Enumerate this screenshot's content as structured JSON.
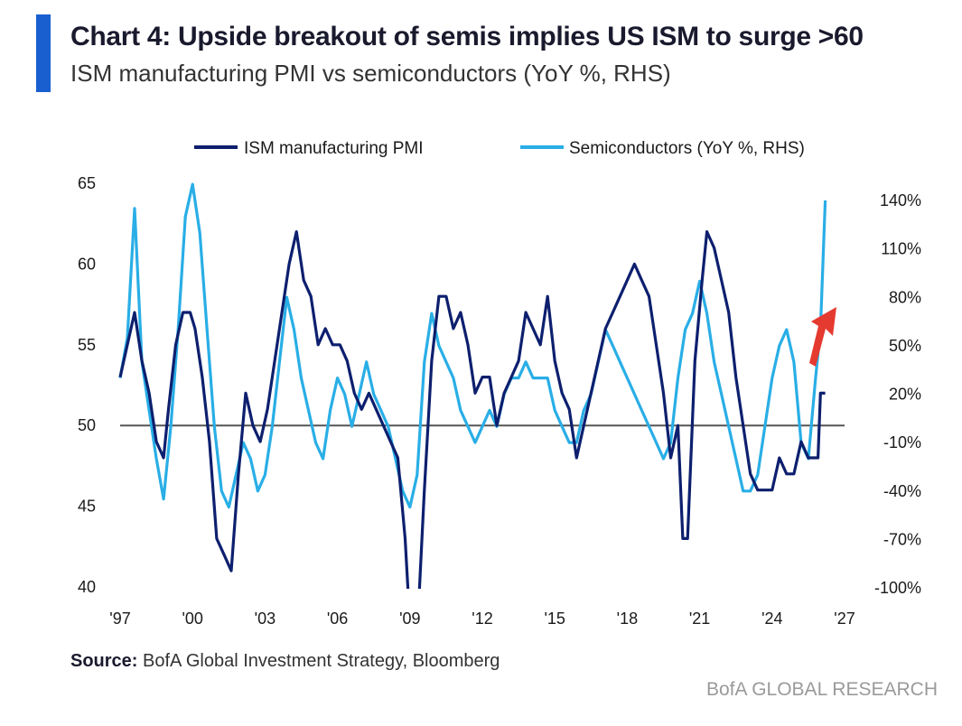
{
  "header": {
    "title": "Chart 4: Upside breakout of semis implies US ISM to surge >60",
    "subtitle": "ISM manufacturing PMI vs semiconductors (YoY %, RHS)"
  },
  "footer": {
    "source_label": "Source:",
    "source_text": "BofA Global Investment Strategy, Bloomberg",
    "brand": "BofA GLOBAL RESEARCH"
  },
  "colors": {
    "accent": "#1a5fd0",
    "ism": "#0d1f6e",
    "semis": "#29aee6",
    "baseline": "#555555",
    "arrow": "#e53a2f"
  },
  "chart_data": {
    "type": "line",
    "title": "",
    "xlabel": "",
    "ylabel": "",
    "x_ticks": [
      "'97",
      "'00",
      "'03",
      "'06",
      "'09",
      "'12",
      "'15",
      "'18",
      "'21",
      "'24",
      "'27"
    ],
    "y_left_ticks": [
      "65",
      "60",
      "55",
      "50",
      "45",
      "40"
    ],
    "y_right_ticks": [
      "140%",
      "110%",
      "80%",
      "50%",
      "20%",
      "-10%",
      "-40%",
      "-70%",
      "-100%"
    ],
    "xlim": [
      1997,
      2027
    ],
    "ylim_left": [
      40,
      65
    ],
    "ylim_right": [
      -100,
      140
    ],
    "reference_line": {
      "axis": "left",
      "value": 50
    },
    "legend": {
      "placement": "top",
      "entries": [
        "ISM manufacturing PMI",
        "Semiconductors (YoY %, RHS)"
      ]
    },
    "annotation": "red upward arrow near latest values",
    "series": [
      {
        "name": "ISM manufacturing PMI",
        "axis": "left",
        "x": [
          1997.0,
          1997.3,
          1997.6,
          1997.9,
          1998.2,
          1998.5,
          1998.8,
          1999.0,
          1999.3,
          1999.6,
          1999.9,
          2000.1,
          2000.4,
          2000.7,
          2001.0,
          2001.3,
          2001.6,
          2001.9,
          2002.2,
          2002.5,
          2002.8,
          2003.1,
          2003.4,
          2003.7,
          2004.0,
          2004.3,
          2004.6,
          2004.9,
          2005.2,
          2005.5,
          2005.8,
          2006.1,
          2006.4,
          2006.7,
          2007.0,
          2007.3,
          2007.6,
          2007.9,
          2008.2,
          2008.5,
          2008.8,
          2008.95,
          2009.1,
          2009.3,
          2009.6,
          2009.9,
          2010.2,
          2010.5,
          2010.8,
          2011.1,
          2011.4,
          2011.7,
          2012.0,
          2012.3,
          2012.6,
          2012.9,
          2013.2,
          2013.5,
          2013.8,
          2014.1,
          2014.4,
          2014.7,
          2015.0,
          2015.3,
          2015.6,
          2015.9,
          2016.2,
          2016.5,
          2016.8,
          2017.1,
          2017.4,
          2017.7,
          2018.0,
          2018.3,
          2018.6,
          2018.9,
          2019.2,
          2019.5,
          2019.8,
          2020.1,
          2020.3,
          2020.5,
          2020.8,
          2021.1,
          2021.3,
          2021.6,
          2021.9,
          2022.2,
          2022.5,
          2022.8,
          2023.1,
          2023.4,
          2023.7,
          2024.0,
          2024.3,
          2024.6,
          2024.9,
          2025.2,
          2025.5,
          2025.8,
          2025.9,
          2026.0,
          2026.2
        ],
        "values": [
          53,
          55,
          57,
          54,
          52,
          49,
          48,
          51,
          55,
          57,
          57,
          56,
          53,
          49,
          43,
          42,
          41,
          47,
          52,
          50,
          49,
          51,
          54,
          57,
          60,
          62,
          59,
          58,
          55,
          56,
          55,
          55,
          54,
          52,
          51,
          52,
          51,
          50,
          49,
          48,
          43,
          39,
          36,
          37,
          46,
          54,
          58,
          58,
          56,
          57,
          55,
          52,
          53,
          53,
          50,
          52,
          53,
          54,
          57,
          56,
          55,
          58,
          54,
          52,
          51,
          48,
          50,
          52,
          54,
          56,
          57,
          58,
          59,
          60,
          59,
          58,
          55,
          52,
          48,
          50,
          43,
          43,
          54,
          59,
          62,
          61,
          59,
          57,
          53,
          50,
          47,
          46,
          46,
          46,
          48,
          47,
          47,
          49,
          48,
          48,
          48,
          52,
          52
        ]
      },
      {
        "name": "Semiconductors (YoY %, RHS)",
        "axis": "right",
        "x": [
          1997.0,
          1997.3,
          1997.6,
          1997.9,
          1998.2,
          1998.5,
          1998.8,
          1999.1,
          1999.4,
          1999.7,
          2000.0,
          2000.3,
          2000.6,
          2000.9,
          2001.2,
          2001.5,
          2001.8,
          2002.1,
          2002.4,
          2002.7,
          2003.0,
          2003.3,
          2003.6,
          2003.9,
          2004.2,
          2004.5,
          2004.8,
          2005.1,
          2005.4,
          2005.7,
          2006.0,
          2006.3,
          2006.6,
          2006.9,
          2007.2,
          2007.5,
          2007.8,
          2008.1,
          2008.4,
          2008.7,
          2009.0,
          2009.3,
          2009.6,
          2009.9,
          2010.2,
          2010.5,
          2010.8,
          2011.1,
          2011.4,
          2011.7,
          2012.0,
          2012.3,
          2012.6,
          2012.9,
          2013.2,
          2013.5,
          2013.8,
          2014.1,
          2014.4,
          2014.7,
          2015.0,
          2015.3,
          2015.6,
          2015.9,
          2016.2,
          2016.5,
          2016.8,
          2017.1,
          2017.4,
          2017.7,
          2018.0,
          2018.3,
          2018.6,
          2018.9,
          2019.2,
          2019.5,
          2019.8,
          2020.1,
          2020.4,
          2020.7,
          2021.0,
          2021.3,
          2021.6,
          2021.9,
          2022.2,
          2022.5,
          2022.8,
          2023.1,
          2023.4,
          2023.7,
          2024.0,
          2024.3,
          2024.6,
          2024.9,
          2025.2,
          2025.5,
          2025.8,
          2026.0,
          2026.2
        ],
        "values": [
          30,
          55,
          135,
          40,
          10,
          -20,
          -45,
          0,
          60,
          130,
          150,
          120,
          60,
          0,
          -40,
          -50,
          -30,
          -10,
          -20,
          -40,
          -30,
          0,
          40,
          80,
          60,
          30,
          10,
          -10,
          -20,
          10,
          30,
          20,
          0,
          20,
          40,
          20,
          10,
          0,
          -20,
          -40,
          -50,
          -30,
          40,
          70,
          50,
          40,
          30,
          10,
          0,
          -10,
          0,
          10,
          0,
          20,
          30,
          30,
          40,
          30,
          30,
          30,
          10,
          0,
          -10,
          -10,
          10,
          20,
          40,
          60,
          50,
          40,
          30,
          20,
          10,
          0,
          -10,
          -20,
          -10,
          30,
          60,
          70,
          90,
          70,
          40,
          20,
          0,
          -20,
          -40,
          -40,
          -30,
          0,
          30,
          50,
          60,
          40,
          -10,
          -20,
          30,
          60,
          140
        ]
      }
    ]
  }
}
